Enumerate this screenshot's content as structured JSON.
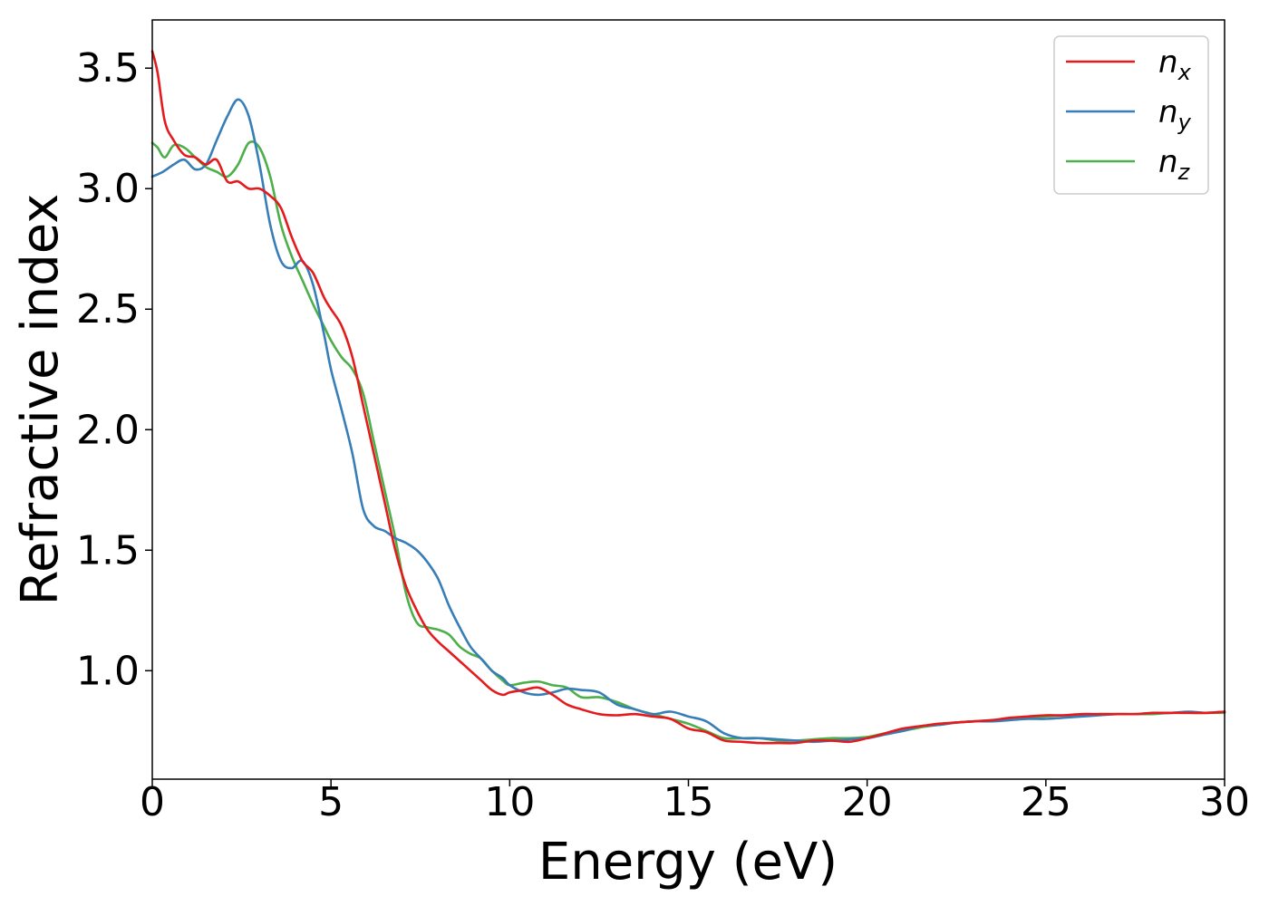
{
  "chart_data": {
    "type": "line",
    "xlabel": "Energy (eV)",
    "ylabel": "Refractive index",
    "xlim": [
      0,
      30
    ],
    "ylim": [
      0.55,
      3.7
    ],
    "xticks": [
      0,
      5,
      10,
      15,
      20,
      25,
      30
    ],
    "xtick_labels": [
      "0",
      "5",
      "10",
      "15",
      "20",
      "25",
      "30"
    ],
    "yticks": [
      1.0,
      1.5,
      2.0,
      2.5,
      3.0,
      3.5
    ],
    "ytick_labels": [
      "1.0",
      "1.5",
      "2.0",
      "2.5",
      "3.0",
      "3.5"
    ],
    "grid": false,
    "legend_position": "top-right",
    "series": [
      {
        "name": "n",
        "subscript": "x",
        "color": "#e41a1c",
        "x": [
          0,
          0.15,
          0.35,
          0.6,
          0.9,
          1.2,
          1.5,
          1.8,
          2.1,
          2.4,
          2.7,
          3.0,
          3.3,
          3.6,
          3.9,
          4.2,
          4.5,
          4.8,
          5.0,
          5.3,
          5.6,
          5.9,
          6.2,
          6.5,
          6.8,
          7.1,
          7.4,
          7.7,
          8.0,
          8.3,
          8.6,
          8.9,
          9.2,
          9.5,
          9.8,
          10.0,
          10.4,
          10.8,
          11.2,
          11.6,
          12.0,
          12.5,
          13.0,
          13.5,
          14.0,
          14.5,
          15.0,
          15.5,
          16.0,
          16.5,
          17.0,
          17.5,
          18.0,
          18.5,
          19.0,
          19.5,
          20.0,
          20.5,
          21.0,
          21.5,
          22.0,
          22.5,
          23.0,
          23.5,
          24.0,
          24.5,
          25.0,
          25.5,
          26.0,
          26.5,
          27.0,
          27.5,
          28.0,
          28.5,
          29.0,
          29.5,
          30.0
        ],
        "y": [
          3.57,
          3.48,
          3.28,
          3.2,
          3.14,
          3.13,
          3.1,
          3.12,
          3.03,
          3.03,
          3.0,
          3.0,
          2.97,
          2.92,
          2.8,
          2.7,
          2.65,
          2.55,
          2.5,
          2.43,
          2.3,
          2.1,
          1.9,
          1.7,
          1.5,
          1.35,
          1.25,
          1.17,
          1.12,
          1.08,
          1.04,
          1.0,
          0.96,
          0.92,
          0.9,
          0.91,
          0.92,
          0.93,
          0.9,
          0.86,
          0.84,
          0.82,
          0.815,
          0.82,
          0.81,
          0.8,
          0.76,
          0.745,
          0.71,
          0.705,
          0.7,
          0.7,
          0.7,
          0.71,
          0.71,
          0.705,
          0.72,
          0.74,
          0.76,
          0.77,
          0.78,
          0.785,
          0.79,
          0.795,
          0.805,
          0.81,
          0.815,
          0.815,
          0.82,
          0.82,
          0.82,
          0.82,
          0.825,
          0.825,
          0.825,
          0.825,
          0.83
        ]
      },
      {
        "name": "n",
        "subscript": "y",
        "color": "#377eb8",
        "x": [
          0,
          0.3,
          0.6,
          0.9,
          1.2,
          1.5,
          1.8,
          2.1,
          2.4,
          2.7,
          3.0,
          3.3,
          3.6,
          3.9,
          4.2,
          4.5,
          4.8,
          5.0,
          5.3,
          5.6,
          5.9,
          6.2,
          6.5,
          6.8,
          7.1,
          7.4,
          7.7,
          8.0,
          8.3,
          8.6,
          8.9,
          9.2,
          9.5,
          9.8,
          10.0,
          10.4,
          10.8,
          11.2,
          11.6,
          12.0,
          12.5,
          13.0,
          13.5,
          14.0,
          14.5,
          15.0,
          15.5,
          16.0,
          16.5,
          17.0,
          17.5,
          18.0,
          18.5,
          19.0,
          19.5,
          20.0,
          20.5,
          21.0,
          21.5,
          22.0,
          22.5,
          23.0,
          23.5,
          24.0,
          24.5,
          25.0,
          25.5,
          26.0,
          26.5,
          27.0,
          27.5,
          28.0,
          28.5,
          29.0,
          29.5,
          30.0
        ],
        "y": [
          3.05,
          3.07,
          3.1,
          3.12,
          3.08,
          3.1,
          3.2,
          3.3,
          3.37,
          3.3,
          3.1,
          2.85,
          2.7,
          2.67,
          2.7,
          2.6,
          2.4,
          2.25,
          2.08,
          1.9,
          1.67,
          1.6,
          1.58,
          1.55,
          1.53,
          1.5,
          1.45,
          1.38,
          1.27,
          1.18,
          1.1,
          1.05,
          1.0,
          0.97,
          0.94,
          0.91,
          0.9,
          0.91,
          0.925,
          0.92,
          0.91,
          0.86,
          0.84,
          0.82,
          0.83,
          0.81,
          0.79,
          0.74,
          0.72,
          0.72,
          0.715,
          0.71,
          0.705,
          0.71,
          0.715,
          0.72,
          0.735,
          0.75,
          0.77,
          0.775,
          0.785,
          0.79,
          0.79,
          0.795,
          0.8,
          0.8,
          0.805,
          0.81,
          0.815,
          0.82,
          0.82,
          0.825,
          0.825,
          0.83,
          0.825,
          0.83
        ]
      },
      {
        "name": "n",
        "subscript": "z",
        "color": "#4daf4a",
        "x": [
          0,
          0.15,
          0.35,
          0.6,
          0.9,
          1.2,
          1.5,
          1.8,
          2.1,
          2.4,
          2.7,
          3.0,
          3.3,
          3.6,
          3.9,
          4.2,
          4.5,
          4.8,
          5.0,
          5.3,
          5.6,
          5.9,
          6.2,
          6.5,
          6.8,
          7.1,
          7.4,
          7.7,
          8.0,
          8.3,
          8.6,
          8.9,
          9.2,
          9.5,
          9.8,
          10.0,
          10.4,
          10.8,
          11.2,
          11.6,
          12.0,
          12.5,
          13.0,
          13.5,
          14.0,
          14.5,
          15.0,
          15.5,
          16.0,
          16.5,
          17.0,
          17.5,
          18.0,
          18.5,
          19.0,
          19.5,
          20.0,
          20.5,
          21.0,
          21.5,
          22.0,
          22.5,
          23.0,
          23.5,
          24.0,
          24.5,
          25.0,
          25.5,
          26.0,
          26.5,
          27.0,
          27.5,
          28.0,
          28.5,
          29.0,
          29.5,
          30.0
        ],
        "y": [
          3.19,
          3.17,
          3.13,
          3.18,
          3.17,
          3.13,
          3.09,
          3.07,
          3.05,
          3.1,
          3.19,
          3.17,
          3.05,
          2.85,
          2.72,
          2.62,
          2.52,
          2.43,
          2.37,
          2.3,
          2.25,
          2.15,
          1.95,
          1.75,
          1.55,
          1.32,
          1.2,
          1.18,
          1.17,
          1.15,
          1.1,
          1.07,
          1.05,
          1.0,
          0.96,
          0.94,
          0.95,
          0.955,
          0.94,
          0.93,
          0.89,
          0.89,
          0.87,
          0.84,
          0.82,
          0.8,
          0.78,
          0.75,
          0.72,
          0.72,
          0.72,
          0.71,
          0.71,
          0.715,
          0.72,
          0.72,
          0.725,
          0.74,
          0.75,
          0.765,
          0.775,
          0.785,
          0.79,
          0.795,
          0.8,
          0.805,
          0.81,
          0.815,
          0.815,
          0.82,
          0.82,
          0.82,
          0.82,
          0.825,
          0.825,
          0.825,
          0.825
        ]
      }
    ]
  }
}
